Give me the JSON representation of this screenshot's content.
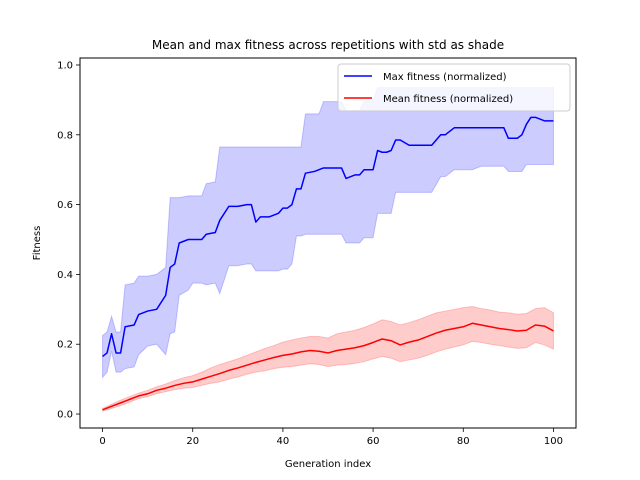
{
  "chart_data": {
    "type": "line",
    "title": "Mean and max fitness across repetitions with std as shade",
    "xlabel": "Generation index",
    "ylabel": "Fitness",
    "xlim": [
      -5,
      105
    ],
    "ylim": [
      -0.04,
      1.02
    ],
    "xticks": [
      0,
      20,
      40,
      60,
      80,
      100
    ],
    "xtick_labels": [
      "0",
      "20",
      "40",
      "60",
      "80",
      "100"
    ],
    "yticks": [
      0.0,
      0.2,
      0.4,
      0.6,
      0.8,
      1.0
    ],
    "ytick_labels": [
      "0.0",
      "0.2",
      "0.4",
      "0.6",
      "0.8",
      "1.0"
    ],
    "grid": false,
    "legend_position": "top-right",
    "series": [
      {
        "name": "Max fitness (normalized)",
        "color": "#0000ff",
        "shade_color": "#0000ff",
        "x": [
          0,
          1,
          2,
          3,
          4,
          5,
          7,
          8,
          10,
          12,
          14,
          15,
          16,
          17,
          19,
          20,
          22,
          23,
          25,
          26,
          28,
          29,
          30,
          32,
          33,
          34,
          35,
          37,
          38,
          39,
          40,
          41,
          42,
          43,
          44,
          45,
          47,
          48,
          49,
          50,
          52,
          53,
          54,
          56,
          57,
          58,
          60,
          61,
          62,
          63,
          64,
          65,
          66,
          68,
          70,
          72,
          73,
          75,
          76,
          78,
          80,
          82,
          84,
          86,
          88,
          89,
          90,
          92,
          93,
          94,
          95,
          96,
          97,
          98,
          99,
          100
        ],
        "mean": [
          0.165,
          0.175,
          0.23,
          0.175,
          0.175,
          0.25,
          0.255,
          0.285,
          0.295,
          0.3,
          0.34,
          0.42,
          0.43,
          0.49,
          0.5,
          0.5,
          0.5,
          0.515,
          0.52,
          0.555,
          0.595,
          0.595,
          0.595,
          0.6,
          0.6,
          0.55,
          0.565,
          0.565,
          0.57,
          0.575,
          0.59,
          0.59,
          0.6,
          0.645,
          0.645,
          0.69,
          0.695,
          0.7,
          0.705,
          0.705,
          0.705,
          0.705,
          0.675,
          0.685,
          0.685,
          0.7,
          0.7,
          0.755,
          0.75,
          0.75,
          0.755,
          0.785,
          0.785,
          0.77,
          0.77,
          0.77,
          0.77,
          0.8,
          0.8,
          0.82,
          0.82,
          0.82,
          0.82,
          0.82,
          0.82,
          0.82,
          0.79,
          0.79,
          0.8,
          0.83,
          0.85,
          0.85,
          0.845,
          0.84,
          0.84,
          0.84
        ],
        "upper": [
          0.225,
          0.235,
          0.28,
          0.235,
          0.235,
          0.37,
          0.375,
          0.395,
          0.395,
          0.4,
          0.42,
          0.62,
          0.62,
          0.62,
          0.625,
          0.625,
          0.625,
          0.66,
          0.665,
          0.765,
          0.765,
          0.765,
          0.765,
          0.765,
          0.765,
          0.765,
          0.765,
          0.765,
          0.765,
          0.765,
          0.765,
          0.765,
          0.765,
          0.765,
          0.765,
          0.86,
          0.86,
          0.86,
          0.895,
          0.895,
          0.895,
          0.895,
          0.87,
          0.87,
          0.87,
          0.895,
          0.895,
          0.935,
          0.935,
          0.935,
          0.935,
          0.935,
          0.935,
          0.935,
          0.935,
          0.935,
          0.935,
          0.935,
          0.935,
          0.935,
          0.935,
          0.935,
          0.935,
          0.935,
          0.935,
          0.935,
          0.935,
          0.935,
          0.935,
          0.935,
          0.935,
          0.935,
          0.935,
          0.935,
          0.935,
          0.935
        ],
        "lower": [
          0.105,
          0.12,
          0.18,
          0.12,
          0.12,
          0.13,
          0.135,
          0.17,
          0.195,
          0.2,
          0.17,
          0.23,
          0.235,
          0.34,
          0.355,
          0.375,
          0.375,
          0.37,
          0.375,
          0.345,
          0.425,
          0.425,
          0.425,
          0.43,
          0.43,
          0.41,
          0.41,
          0.41,
          0.41,
          0.41,
          0.415,
          0.415,
          0.43,
          0.51,
          0.51,
          0.515,
          0.515,
          0.515,
          0.515,
          0.515,
          0.515,
          0.515,
          0.49,
          0.49,
          0.49,
          0.505,
          0.505,
          0.575,
          0.575,
          0.575,
          0.575,
          0.635,
          0.635,
          0.635,
          0.635,
          0.635,
          0.635,
          0.68,
          0.68,
          0.7,
          0.7,
          0.7,
          0.71,
          0.71,
          0.71,
          0.71,
          0.695,
          0.695,
          0.695,
          0.715,
          0.715,
          0.715,
          0.715,
          0.715,
          0.715,
          0.715
        ]
      },
      {
        "name": "Mean fitness (normalized)",
        "color": "#ff0000",
        "shade_color": "#ff0000",
        "x": [
          0,
          2,
          4,
          6,
          8,
          10,
          12,
          14,
          16,
          18,
          20,
          22,
          24,
          26,
          28,
          30,
          32,
          34,
          36,
          38,
          40,
          42,
          44,
          46,
          48,
          50,
          52,
          54,
          56,
          58,
          60,
          62,
          64,
          66,
          68,
          70,
          72,
          74,
          76,
          78,
          80,
          82,
          84,
          86,
          88,
          90,
          92,
          94,
          96,
          98,
          100
        ],
        "mean": [
          0.012,
          0.022,
          0.032,
          0.042,
          0.052,
          0.058,
          0.068,
          0.074,
          0.082,
          0.088,
          0.092,
          0.1,
          0.108,
          0.116,
          0.125,
          0.132,
          0.14,
          0.148,
          0.155,
          0.162,
          0.168,
          0.172,
          0.178,
          0.182,
          0.18,
          0.175,
          0.182,
          0.186,
          0.19,
          0.196,
          0.205,
          0.215,
          0.21,
          0.198,
          0.206,
          0.212,
          0.222,
          0.232,
          0.24,
          0.245,
          0.25,
          0.26,
          0.255,
          0.25,
          0.245,
          0.242,
          0.238,
          0.24,
          0.255,
          0.252,
          0.238
        ],
        "upper": [
          0.016,
          0.028,
          0.04,
          0.05,
          0.06,
          0.068,
          0.078,
          0.086,
          0.096,
          0.104,
          0.11,
          0.12,
          0.132,
          0.142,
          0.15,
          0.158,
          0.168,
          0.178,
          0.188,
          0.196,
          0.206,
          0.212,
          0.218,
          0.222,
          0.222,
          0.218,
          0.23,
          0.235,
          0.24,
          0.248,
          0.258,
          0.27,
          0.265,
          0.255,
          0.262,
          0.27,
          0.28,
          0.29,
          0.295,
          0.3,
          0.305,
          0.308,
          0.302,
          0.298,
          0.292,
          0.29,
          0.286,
          0.288,
          0.302,
          0.305,
          0.29
        ],
        "lower": [
          0.008,
          0.016,
          0.024,
          0.034,
          0.044,
          0.05,
          0.058,
          0.064,
          0.07,
          0.074,
          0.076,
          0.082,
          0.088,
          0.092,
          0.1,
          0.106,
          0.114,
          0.12,
          0.124,
          0.13,
          0.134,
          0.136,
          0.14,
          0.144,
          0.142,
          0.136,
          0.14,
          0.142,
          0.145,
          0.15,
          0.158,
          0.165,
          0.16,
          0.15,
          0.155,
          0.16,
          0.168,
          0.178,
          0.186,
          0.192,
          0.198,
          0.208,
          0.205,
          0.2,
          0.196,
          0.192,
          0.188,
          0.19,
          0.205,
          0.198,
          0.186
        ]
      }
    ]
  }
}
